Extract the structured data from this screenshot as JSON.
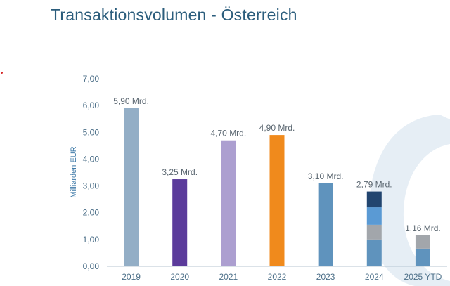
{
  "title": "Transaktionsvolumen - Österreich",
  "chart_data": {
    "type": "bar",
    "title": "Transaktionsvolumen - Österreich",
    "xlabel": "",
    "ylabel": "Milliarden EUR",
    "ylim": [
      0,
      7
    ],
    "yticks": [
      "0,00",
      "1,00",
      "2,00",
      "3,00",
      "4,00",
      "5,00",
      "6,00",
      "7,00"
    ],
    "grid": false,
    "categories": [
      "2019",
      "2020",
      "2021",
      "2022",
      "2023",
      "2024",
      "2025 YTD"
    ],
    "values": [
      5.9,
      3.25,
      4.7,
      4.9,
      3.1,
      2.79,
      1.16
    ],
    "data_labels": [
      "5,90 Mrd.",
      "3,25 Mrd.",
      "4,70 Mrd.",
      "4,90 Mrd.",
      "3,10 Mrd.",
      "2,79 Mrd.",
      "1,16 Mrd."
    ],
    "colors": [
      "#93aec6",
      "#5b3b9b",
      "#ac9fd0",
      "#f08a1c",
      "#5f93bd",
      "#5f93bd",
      "#5f93bd"
    ],
    "stacked_segments": {
      "2024": [
        {
          "value": 1.0,
          "color": "#5f93bd"
        },
        {
          "value": 0.55,
          "color": "#a2a6ab"
        },
        {
          "value": 0.65,
          "color": "#5a9ad4"
        },
        {
          "value": 0.59,
          "color": "#22456f"
        }
      ],
      "2025 YTD": [
        {
          "value": 0.66,
          "color": "#5f93bd"
        },
        {
          "value": 0.5,
          "color": "#a2a6ab"
        }
      ]
    }
  },
  "theme": {
    "title_color": "#2b5d7c",
    "axis_color": "#4c6f88",
    "watermark_color": "#e6eef5"
  }
}
